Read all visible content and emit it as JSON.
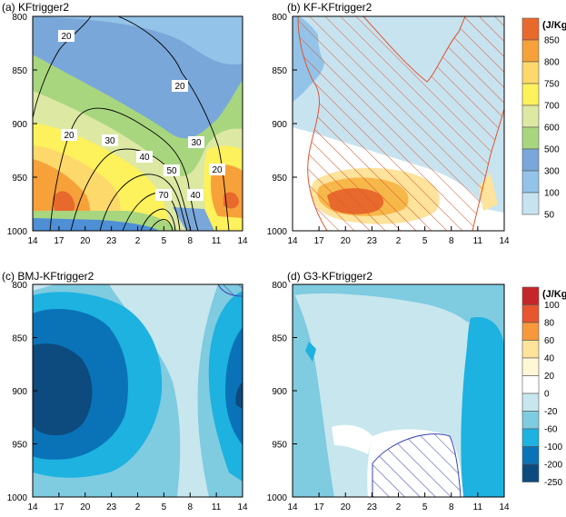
{
  "chart_data": [
    {
      "type": "heatmap",
      "title": "(a) KFtrigger2",
      "x_ticks": [
        "14",
        "17",
        "20",
        "23",
        "2",
        "5",
        "8",
        "11",
        "14"
      ],
      "y_ticks": [
        "800",
        "850",
        "900",
        "950",
        "1000"
      ],
      "ylim": [
        1000,
        800
      ],
      "fill_legend": "top",
      "contour_labels": [
        "20",
        "20",
        "20",
        "30",
        "30",
        "40",
        "50",
        "70",
        "40",
        "20"
      ]
    },
    {
      "type": "heatmap",
      "title": "(b) KF-KFtrigger2",
      "x_ticks": [
        "14",
        "17",
        "20",
        "23",
        "2",
        "5",
        "8",
        "11",
        "14"
      ],
      "y_ticks": [
        "800",
        "850",
        "900",
        "950",
        "1000"
      ],
      "ylim": [
        1000,
        800
      ],
      "hatching": "significant region (orange diagonal hatch)"
    },
    {
      "type": "heatmap",
      "title": "(c) BMJ-KFtrigger2",
      "x_ticks": [
        "14",
        "17",
        "20",
        "23",
        "2",
        "5",
        "8",
        "11",
        "14"
      ],
      "y_ticks": [
        "800",
        "850",
        "900",
        "950",
        "1000"
      ],
      "ylim": [
        1000,
        800
      ],
      "fill_legend": "bottom"
    },
    {
      "type": "heatmap",
      "title": "(d) G3-KFtrigger2",
      "x_ticks": [
        "14",
        "17",
        "20",
        "23",
        "2",
        "5",
        "8",
        "11",
        "14"
      ],
      "y_ticks": [
        "800",
        "850",
        "900",
        "950",
        "1000"
      ],
      "ylim": [
        1000,
        800
      ],
      "hatching": "significant region (blue diagonal hatch)"
    }
  ],
  "legend_top": {
    "unit": "(J/Kg)",
    "levels": [
      {
        "label": "850",
        "color": "#e8692c"
      },
      {
        "label": "800",
        "color": "#f7a13a"
      },
      {
        "label": "750",
        "color": "#fdd96b"
      },
      {
        "label": "700",
        "color": "#fdf15c"
      },
      {
        "label": "600",
        "color": "#dde8a3"
      },
      {
        "label": "500",
        "color": "#a8d67f"
      },
      {
        "label": "300",
        "color": "#7aa7d9"
      },
      {
        "label": "100",
        "color": "#93c3e8"
      },
      {
        "label": "50",
        "color": "#c7e3f0"
      }
    ]
  },
  "legend_bottom": {
    "unit": "(J/Kg)",
    "levels": [
      {
        "label": "100",
        "color": "#c4262a"
      },
      {
        "label": "80",
        "color": "#e8552f"
      },
      {
        "label": "60",
        "color": "#f7993a"
      },
      {
        "label": "40",
        "color": "#fde39b"
      },
      {
        "label": "20",
        "color": "#fff7d5"
      },
      {
        "label": "0",
        "color": "#ffffff"
      },
      {
        "label": "-20",
        "color": "#c7e6ee"
      },
      {
        "label": "-60",
        "color": "#7fcbe0"
      },
      {
        "label": "-100",
        "color": "#1db2e0"
      },
      {
        "label": "-200",
        "color": "#0a73b8"
      },
      {
        "label": "-250",
        "color": "#0d4a7e"
      }
    ]
  }
}
